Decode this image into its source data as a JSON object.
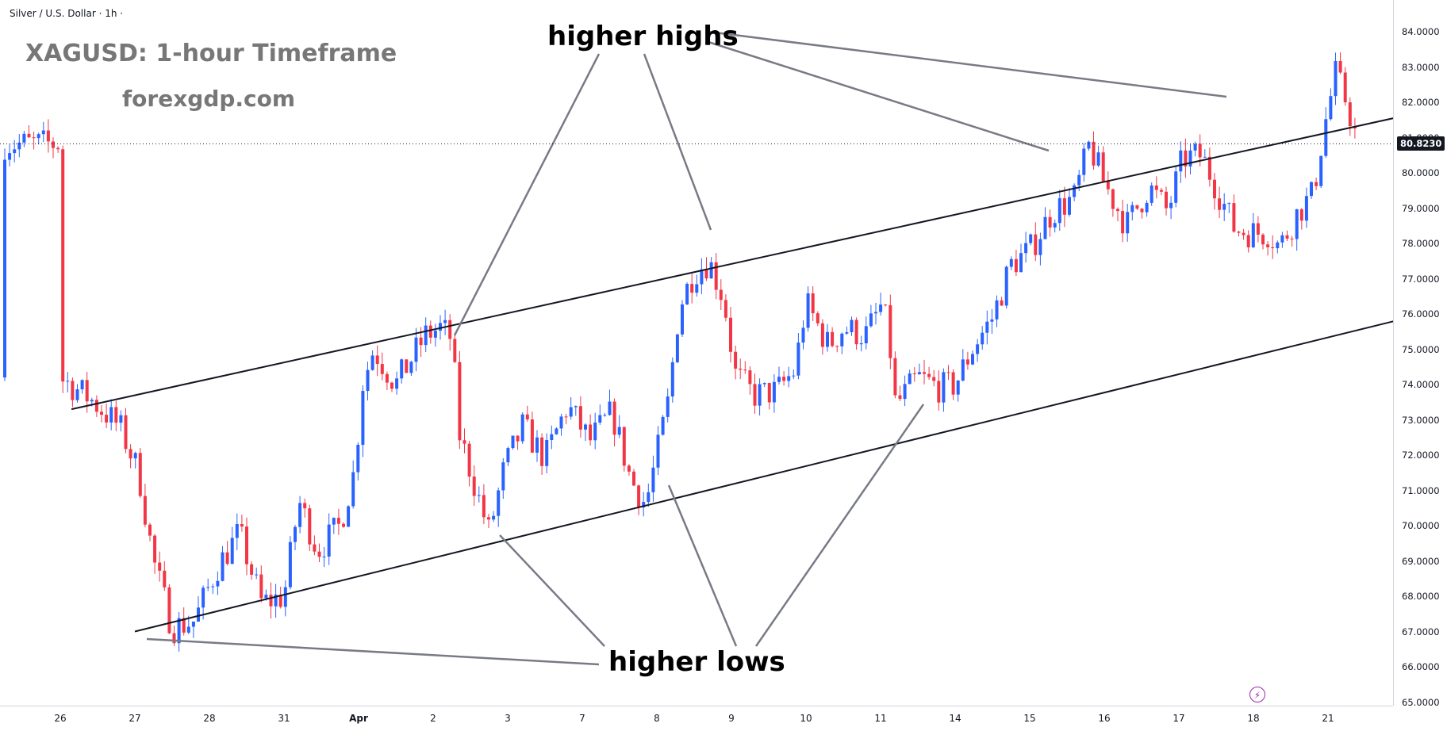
{
  "header": {
    "symbol_label": "Silver / U.S. Dollar · 1h ·",
    "watermark_title": "XAGUSD: 1-hour Timeframe",
    "watermark_site": "forexgdp.com"
  },
  "annotations": {
    "higher_highs": "higher highs",
    "higher_lows": "higher lows"
  },
  "price_axis": {
    "ticks": [
      "84.0000",
      "83.0000",
      "82.0000",
      "81.0000",
      "80.0000",
      "79.0000",
      "78.0000",
      "77.0000",
      "76.0000",
      "75.0000",
      "74.0000",
      "73.0000",
      "72.0000",
      "71.0000",
      "70.0000",
      "69.0000",
      "68.0000",
      "67.0000",
      "66.0000",
      "65.0000"
    ],
    "last_price": "80.8230"
  },
  "time_axis": {
    "ticks": [
      "26",
      "27",
      "28",
      "31",
      "Apr",
      "2",
      "3",
      "7",
      "8",
      "9",
      "10",
      "11",
      "14",
      "15",
      "16",
      "17",
      "18",
      "21"
    ]
  },
  "colors": {
    "up": "#2962ff",
    "down": "#f23645",
    "trendline": "#131722",
    "pointer": "#787b86",
    "watermark": "#777777"
  },
  "icons": {
    "bolt": "lightning-bolt-icon"
  },
  "chart_data": {
    "type": "candlestick",
    "symbol": "XAGUSD",
    "timeframe": "1h",
    "ylim": [
      65,
      84
    ],
    "last_price": 80.823,
    "x_ticks": [
      "26",
      "27",
      "28",
      "31",
      "Apr",
      "2",
      "3",
      "7",
      "8",
      "9",
      "10",
      "11",
      "14",
      "15",
      "16",
      "17",
      "18",
      "21"
    ],
    "channel": {
      "upper": {
        "start": [
          0.15,
          73.3
        ],
        "end": [
          22.5,
          83.7
        ]
      },
      "lower": {
        "start": [
          1.0,
          67.0
        ],
        "end": [
          22.5,
          78.2
        ]
      }
    },
    "close_path": [
      [
        0.0,
        74.2
      ],
      [
        0.4,
        73.6
      ],
      [
        0.8,
        72.8
      ],
      [
        1.05,
        71.5
      ],
      [
        1.25,
        69.0
      ],
      [
        1.5,
        67.1
      ],
      [
        1.8,
        67.3
      ],
      [
        2.1,
        68.8
      ],
      [
        2.4,
        69.8
      ],
      [
        2.7,
        67.8
      ],
      [
        3.0,
        68.0
      ],
      [
        3.2,
        70.7
      ],
      [
        3.45,
        69.3
      ],
      [
        3.75,
        70.0
      ],
      [
        3.95,
        71.6
      ],
      [
        4.05,
        74.0
      ],
      [
        4.2,
        75.0
      ],
      [
        4.5,
        74.0
      ],
      [
        4.9,
        75.4
      ],
      [
        5.1,
        75.6
      ],
      [
        5.25,
        75.3
      ],
      [
        5.35,
        72.6
      ],
      [
        5.55,
        71.2
      ],
      [
        5.75,
        69.8
      ],
      [
        5.95,
        71.6
      ],
      [
        6.2,
        72.8
      ],
      [
        6.5,
        71.9
      ],
      [
        6.8,
        73.4
      ],
      [
        7.1,
        72.4
      ],
      [
        7.4,
        73.2
      ],
      [
        7.65,
        71.3
      ],
      [
        7.85,
        70.6
      ],
      [
        8.0,
        72.0
      ],
      [
        8.15,
        73.5
      ],
      [
        8.3,
        76.2
      ],
      [
        8.5,
        77.2
      ],
      [
        8.7,
        77.5
      ],
      [
        8.9,
        76.4
      ],
      [
        9.05,
        74.3
      ],
      [
        9.3,
        73.7
      ],
      [
        9.6,
        73.8
      ],
      [
        9.85,
        74.4
      ],
      [
        10.0,
        76.3
      ],
      [
        10.3,
        75.1
      ],
      [
        10.5,
        75.6
      ],
      [
        10.8,
        75.4
      ],
      [
        11.0,
        76.2
      ],
      [
        11.1,
        75.6
      ],
      [
        11.2,
        73.4
      ],
      [
        11.5,
        74.2
      ],
      [
        11.8,
        73.9
      ],
      [
        12.0,
        74.0
      ],
      [
        12.25,
        75.1
      ],
      [
        12.5,
        75.9
      ],
      [
        12.75,
        77.4
      ],
      [
        13.0,
        77.8
      ],
      [
        13.3,
        78.9
      ],
      [
        13.6,
        79.3
      ],
      [
        13.8,
        80.8
      ],
      [
        14.0,
        79.7
      ],
      [
        14.3,
        78.5
      ],
      [
        14.6,
        79.6
      ],
      [
        14.85,
        78.9
      ],
      [
        15.05,
        80.4
      ],
      [
        15.3,
        80.5
      ],
      [
        15.5,
        79.6
      ],
      [
        15.75,
        78.4
      ],
      [
        16.0,
        78.3
      ],
      [
        16.2,
        78.3
      ],
      [
        16.35,
        77.9
      ],
      [
        16.6,
        78.9
      ],
      [
        16.8,
        79.4
      ],
      [
        16.95,
        81.3
      ],
      [
        17.1,
        82.8
      ],
      [
        17.25,
        82.0
      ],
      [
        17.4,
        80.82
      ]
    ]
  }
}
